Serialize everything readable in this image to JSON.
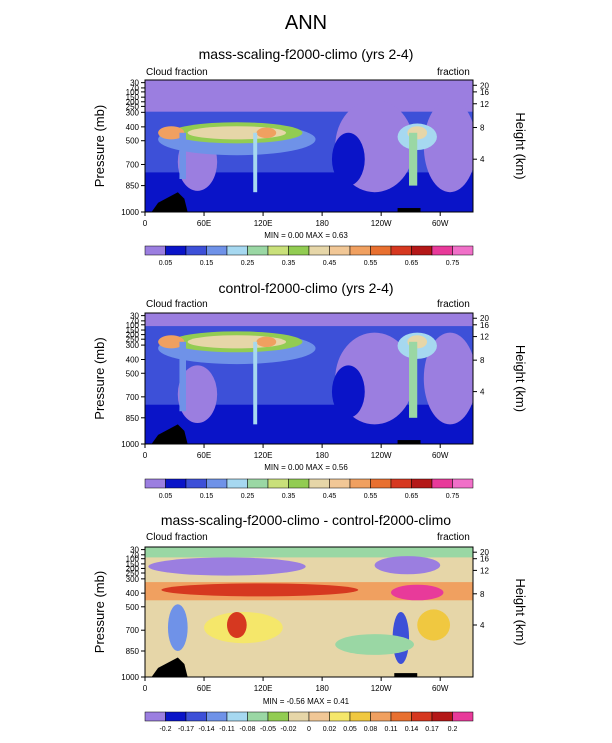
{
  "page_title": "ANN",
  "chart_data": [
    {
      "type": "heatmap",
      "title": "mass-scaling-f2000-climo (yrs 2-4)",
      "left_label": "Cloud fraction",
      "right_label": "fraction",
      "ylabel": "Pressure (mb)",
      "y2label": "Height (km)",
      "x_ticks": [
        "0",
        "60E",
        "120E",
        "180",
        "120W",
        "60W"
      ],
      "y_ticks": [
        "30",
        "70",
        "100",
        "150",
        "200",
        "250",
        "300",
        "400",
        "500",
        "700",
        "850",
        "1000"
      ],
      "y2_ticks": [
        "20",
        "16",
        "12",
        "8",
        "4"
      ],
      "stats": "MIN =  0.00  MAX =  0.63",
      "min": 0.0,
      "max": 0.63,
      "colorbar_labels": [
        "0.05",
        "0.15",
        "0.25",
        "0.35",
        "0.45",
        "0.55",
        "0.65",
        "0.75"
      ],
      "colorbar_colors": [
        "#9b7ee0",
        "#0a14c8",
        "#3d50d8",
        "#6f92e8",
        "#a6d8f0",
        "#9ad7a4",
        "#c9e07a",
        "#92cc52",
        "#e6d6a8",
        "#f1c796",
        "#f0a060",
        "#e87030",
        "#d63820",
        "#b41818",
        "#e83a9a",
        "#f070c8"
      ]
    },
    {
      "type": "heatmap",
      "title": "control-f2000-climo (yrs 2-4)",
      "left_label": "Cloud fraction",
      "right_label": "fraction",
      "ylabel": "Pressure (mb)",
      "y2label": "Height (km)",
      "x_ticks": [
        "0",
        "60E",
        "120E",
        "180",
        "120W",
        "60W"
      ],
      "y_ticks": [
        "30",
        "70",
        "100",
        "150",
        "200",
        "250",
        "300",
        "400",
        "500",
        "700",
        "850",
        "1000"
      ],
      "y2_ticks": [
        "20",
        "16",
        "12",
        "8",
        "4"
      ],
      "stats": "MIN =  0.00  MAX =  0.56",
      "min": 0.0,
      "max": 0.56,
      "colorbar_labels": [
        "0.05",
        "0.15",
        "0.25",
        "0.35",
        "0.45",
        "0.55",
        "0.65",
        "0.75"
      ],
      "colorbar_colors": [
        "#9b7ee0",
        "#0a14c8",
        "#3d50d8",
        "#6f92e8",
        "#a6d8f0",
        "#9ad7a4",
        "#c9e07a",
        "#92cc52",
        "#e6d6a8",
        "#f1c796",
        "#f0a060",
        "#e87030",
        "#d63820",
        "#b41818",
        "#e83a9a",
        "#f070c8"
      ]
    },
    {
      "type": "heatmap",
      "title": "mass-scaling-f2000-climo - control-f2000-climo",
      "left_label": "Cloud fraction",
      "right_label": "fraction",
      "ylabel": "Pressure (mb)",
      "y2label": "Height (km)",
      "x_ticks": [
        "0",
        "60E",
        "120E",
        "180",
        "120W",
        "60W"
      ],
      "y_ticks": [
        "30",
        "70",
        "100",
        "150",
        "200",
        "250",
        "300",
        "400",
        "500",
        "700",
        "850",
        "1000"
      ],
      "y2_ticks": [
        "20",
        "16",
        "12",
        "8",
        "4"
      ],
      "stats": "MIN =  -0.56  MAX =  0.41",
      "min": -0.56,
      "max": 0.41,
      "colorbar_labels": [
        "-0.2",
        "-0.17",
        "-0.14",
        "-0.11",
        "-0.08",
        "-0.05",
        "-0.02",
        "0",
        "0.02",
        "0.05",
        "0.08",
        "0.11",
        "0.14",
        "0.17",
        "0.2"
      ],
      "colorbar_colors": [
        "#9b7ee0",
        "#0a14c8",
        "#3d50d8",
        "#6f92e8",
        "#a6d8f0",
        "#9ad7a4",
        "#92cc52",
        "#e6d6a8",
        "#f1c796",
        "#f5e76a",
        "#f0c840",
        "#f0a060",
        "#e87030",
        "#d63820",
        "#b41818",
        "#e83a9a"
      ]
    }
  ]
}
